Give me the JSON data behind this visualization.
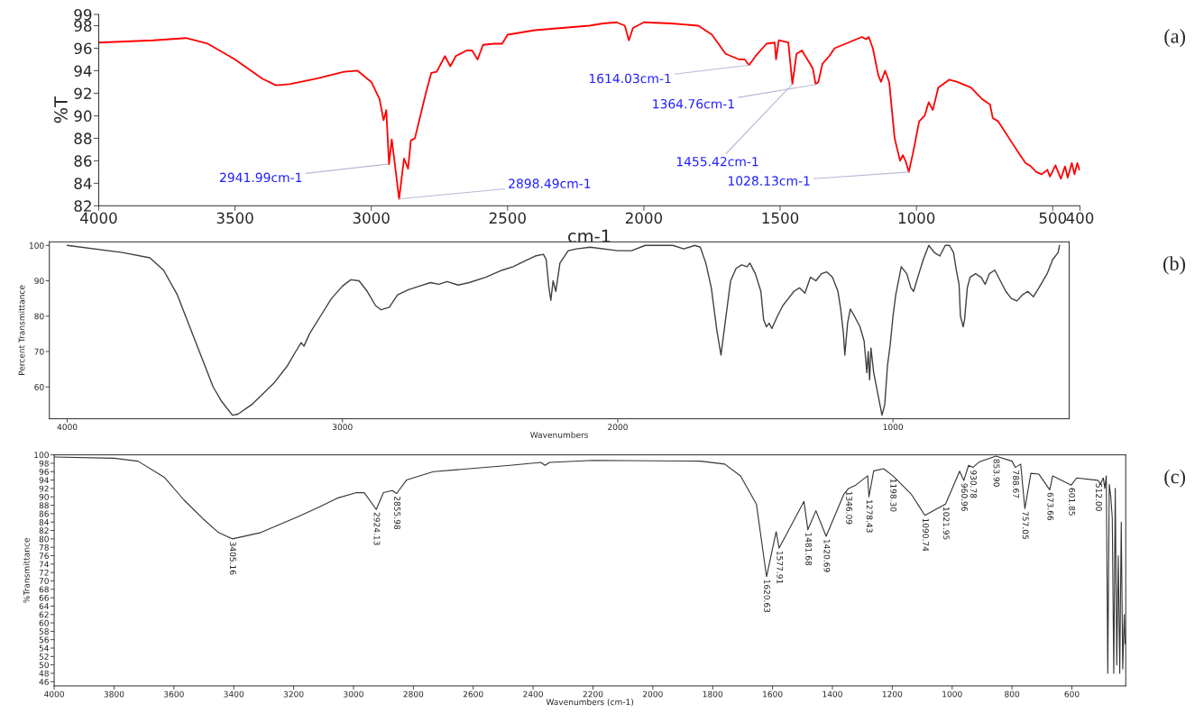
{
  "chart_data": [
    {
      "type": "line",
      "xlabel": "cm-1",
      "ylabel": "%T",
      "xlim": [
        4000,
        400
      ],
      "ylim": [
        82,
        99
      ],
      "xticks": [
        4000,
        3500,
        3000,
        2500,
        2000,
        1500,
        1000,
        500,
        400
      ],
      "yticks": [
        82,
        84,
        86,
        88,
        90,
        92,
        94,
        96,
        98,
        99
      ],
      "x": [
        4000,
        3800,
        3680,
        3600,
        3500,
        3400,
        3350,
        3300,
        3200,
        3100,
        3050,
        3000,
        2970,
        2955,
        2945,
        2935,
        2925,
        2915,
        2898,
        2880,
        2865,
        2855,
        2840,
        2800,
        2780,
        2760,
        2730,
        2710,
        2690,
        2650,
        2630,
        2610,
        2590,
        2550,
        2520,
        2500,
        2400,
        2300,
        2200,
        2150,
        2100,
        2070,
        2055,
        2040,
        2000,
        1900,
        1800,
        1750,
        1700,
        1650,
        1630,
        1614,
        1590,
        1550,
        1520,
        1515,
        1505,
        1470,
        1455,
        1440,
        1420,
        1400,
        1380,
        1370,
        1360,
        1345,
        1320,
        1300,
        1250,
        1200,
        1185,
        1175,
        1160,
        1140,
        1130,
        1115,
        1100,
        1080,
        1060,
        1050,
        1040,
        1028,
        1010,
        990,
        970,
        955,
        940,
        920,
        880,
        850,
        800,
        760,
        730,
        720,
        700,
        660,
        620,
        600,
        580,
        560,
        540,
        520,
        510,
        490,
        470,
        455,
        445,
        430,
        420,
        410,
        402
      ],
      "series": [
        {
          "color": "#ff0000",
          "values": [
            96.5,
            96.7,
            96.9,
            96.4,
            95.0,
            93.3,
            92.7,
            92.8,
            93.3,
            93.9,
            94.0,
            93.0,
            91.5,
            89.6,
            90.5,
            85.7,
            87.9,
            86.0,
            82.6,
            86.2,
            85.3,
            87.8,
            88.0,
            92.0,
            93.8,
            93.9,
            95.3,
            94.4,
            95.3,
            95.8,
            95.8,
            95.0,
            96.3,
            96.4,
            96.4,
            97.2,
            97.6,
            97.8,
            98.0,
            98.2,
            98.3,
            98.0,
            96.7,
            97.8,
            98.3,
            98.2,
            98.0,
            97.2,
            95.5,
            95.0,
            95.0,
            94.5,
            95.3,
            96.4,
            96.5,
            95.0,
            96.7,
            96.5,
            92.8,
            95.5,
            95.8,
            95.0,
            94.2,
            92.8,
            93.0,
            94.6,
            95.3,
            96.0,
            96.5,
            97.0,
            96.8,
            97.0,
            96.0,
            93.6,
            93.0,
            94.0,
            93.0,
            88.0,
            86.0,
            86.5,
            86.0,
            85.0,
            87.0,
            89.5,
            90.0,
            91.2,
            90.5,
            92.5,
            93.2,
            93.0,
            92.5,
            91.5,
            91.0,
            89.8,
            89.5,
            88.0,
            86.5,
            85.8,
            85.5,
            85.0,
            84.8,
            85.2,
            84.6,
            85.6,
            84.4,
            85.5,
            84.5,
            85.8,
            84.8,
            85.8,
            85.2
          ]
        }
      ],
      "annotations": [
        {
          "text": "2941.99cm-1",
          "x": 2941.99,
          "y": 85.7
        },
        {
          "text": "2898.49cm-1",
          "x": 2898.49,
          "y": 82.6
        },
        {
          "text": "1614.03cm-1",
          "x": 1614.03,
          "y": 94.5
        },
        {
          "text": "1455.42cm-1",
          "x": 1455.42,
          "y": 92.8
        },
        {
          "text": "1364.76cm-1",
          "x": 1364.76,
          "y": 92.8
        },
        {
          "text": "1028.13cm-1",
          "x": 1028.13,
          "y": 85.0
        },
        "(a)"
      ]
    },
    {
      "type": "line",
      "xlabel": "Wavenumbers",
      "ylabel": "Percent Transmittance",
      "xlim": [
        4065,
        360
      ],
      "ylim": [
        51,
        101
      ],
      "xticks": [
        4000,
        3000,
        2000,
        1000
      ],
      "yticks": [
        60,
        70,
        80,
        90,
        100
      ],
      "x": [
        4000,
        3800,
        3700,
        3650,
        3600,
        3550,
        3500,
        3470,
        3440,
        3400,
        3380,
        3330,
        3250,
        3200,
        3170,
        3150,
        3140,
        3120,
        3080,
        3040,
        3000,
        2970,
        2940,
        2910,
        2880,
        2860,
        2830,
        2800,
        2760,
        2720,
        2680,
        2650,
        2620,
        2580,
        2540,
        2480,
        2420,
        2380,
        2340,
        2300,
        2270,
        2260,
        2250,
        2243,
        2235,
        2225,
        2210,
        2180,
        2150,
        2100,
        2000,
        1950,
        1900,
        1800,
        1760,
        1720,
        1700,
        1680,
        1660,
        1640,
        1625,
        1610,
        1590,
        1570,
        1550,
        1530,
        1520,
        1500,
        1480,
        1470,
        1460,
        1450,
        1440,
        1420,
        1400,
        1380,
        1360,
        1340,
        1320,
        1300,
        1280,
        1260,
        1240,
        1220,
        1200,
        1190,
        1180,
        1175,
        1165,
        1155,
        1140,
        1120,
        1105,
        1095,
        1090,
        1085,
        1080,
        1070,
        1050,
        1040,
        1030,
        1020,
        1010,
        1000,
        990,
        980,
        970,
        950,
        935,
        925,
        910,
        890,
        870,
        850,
        830,
        810,
        795,
        780,
        770,
        760,
        755,
        745,
        740,
        730,
        720,
        700,
        680,
        665,
        650,
        630,
        610,
        590,
        570,
        550,
        530,
        510,
        490,
        470,
        440,
        420,
        400,
        395
      ],
      "series": [
        {
          "color": "#404040",
          "values": [
            100,
            98,
            96.5,
            93,
            86,
            76,
            66,
            60,
            56,
            52,
            52.3,
            55,
            61,
            66,
            70,
            72.5,
            71.5,
            75,
            80,
            85,
            88.5,
            90.3,
            90,
            87,
            83,
            81.8,
            82.5,
            86,
            87.5,
            88.5,
            89.5,
            89,
            89.8,
            88.8,
            89.5,
            91,
            93,
            94,
            95.5,
            97,
            97.5,
            96,
            88,
            84.5,
            90,
            87,
            95,
            98.5,
            99,
            99.5,
            98.5,
            98.5,
            100,
            100,
            99,
            100,
            99.5,
            95,
            88,
            76,
            69,
            78,
            90,
            93.5,
            94.5,
            94,
            95,
            92,
            87,
            79,
            77,
            78,
            76.5,
            80,
            83,
            85,
            87,
            88,
            86.5,
            91,
            90,
            92,
            92.5,
            91,
            87,
            82,
            75,
            69,
            78,
            82,
            80,
            77,
            73,
            64,
            70,
            62,
            71,
            64,
            56,
            52,
            55,
            66,
            72,
            80,
            86,
            90,
            94,
            92,
            88,
            87,
            91,
            96,
            100,
            98,
            97,
            100,
            100,
            98,
            93,
            89,
            80,
            77,
            79,
            88,
            91,
            92,
            91,
            89,
            92,
            93,
            90,
            87,
            85,
            84.3,
            86,
            87,
            85.5,
            88,
            92,
            96,
            98,
            100
          ]
        }
      ],
      "annotations": [
        "(b)"
      ]
    },
    {
      "type": "line",
      "xlabel": "Wavenumbers (cm-1)",
      "ylabel": "%Transmittance",
      "xlim": [
        4000,
        420
      ],
      "ylim": [
        45,
        100
      ],
      "xticks": [
        4000,
        3800,
        3600,
        3400,
        3200,
        3000,
        2800,
        2600,
        2400,
        2200,
        2000,
        1800,
        1600,
        1400,
        1200,
        1000,
        800,
        600
      ],
      "yticks": [
        46,
        48,
        50,
        52,
        54,
        56,
        58,
        60,
        62,
        64,
        66,
        68,
        70,
        72,
        74,
        76,
        78,
        80,
        82,
        84,
        86,
        88,
        90,
        92,
        94,
        96,
        98,
        100
      ],
      "x": [
        4000,
        3800,
        3720,
        3631,
        3567,
        3503,
        3451,
        3405,
        3310,
        3182,
        3118,
        3054,
        2990,
        2964,
        2924,
        2900,
        2870,
        2856,
        2823,
        2733,
        2477,
        2374,
        2360,
        2345,
        2200,
        1840,
        1760,
        1707,
        1654,
        1620,
        1588,
        1578,
        1495,
        1482,
        1455,
        1421,
        1362,
        1346,
        1322,
        1282,
        1278,
        1262,
        1229,
        1198,
        1136,
        1091,
        1022,
        975,
        961,
        945,
        931,
        910,
        854,
        800,
        789,
        771,
        757,
        737,
        710,
        674,
        664,
        602,
        584,
        520,
        512,
        505,
        495,
        490,
        485,
        480,
        475,
        470,
        465,
        460,
        455,
        450,
        445,
        440,
        435,
        430,
        425,
        422
      ],
      "series": [
        {
          "color": "#333333",
          "values": [
            99.5,
            99.2,
            98.5,
            94.6,
            89.3,
            84.8,
            81.5,
            80.0,
            81.5,
            85.4,
            87.5,
            89.7,
            91,
            91,
            87.0,
            91,
            91.5,
            90.8,
            94,
            96,
            97.5,
            98.2,
            97.5,
            98.2,
            98.7,
            98.5,
            97.8,
            95,
            88.3,
            71,
            81.7,
            77.8,
            88.9,
            82.2,
            86.7,
            80.6,
            90.6,
            92,
            92.8,
            95,
            90,
            96.2,
            96.7,
            95,
            90.6,
            85.6,
            88.3,
            96.1,
            93.9,
            97.5,
            97,
            98.3,
            99.7,
            98.5,
            97,
            97.8,
            87.2,
            95.6,
            95.4,
            91.7,
            95,
            92.8,
            94.5,
            94,
            93.9,
            93,
            94.5,
            92,
            95,
            48,
            93,
            90,
            85,
            48,
            92,
            50,
            76,
            48,
            84,
            49,
            62,
            55
          ]
        }
      ],
      "annotations": [
        {
          "text": "3405.16",
          "x": 3405.16,
          "y": 80.0
        },
        {
          "text": "2924.13",
          "x": 2924.13,
          "y": 87.0
        },
        {
          "text": "2855.98",
          "x": 2855.98,
          "y": 90.8
        },
        {
          "text": "1620.63",
          "x": 1620.63,
          "y": 71
        },
        {
          "text": "1577.91",
          "x": 1577.91,
          "y": 77.8
        },
        {
          "text": "1481.68",
          "x": 1481.68,
          "y": 82.2
        },
        {
          "text": "1420.69",
          "x": 1420.69,
          "y": 80.6
        },
        {
          "text": "1346.09",
          "x": 1346.09,
          "y": 92
        },
        {
          "text": "1278.43",
          "x": 1278.43,
          "y": 90
        },
        {
          "text": "1198.30",
          "x": 1198.3,
          "y": 95
        },
        {
          "text": "1090.74",
          "x": 1090.74,
          "y": 85.6
        },
        {
          "text": "1021.95",
          "x": 1021.95,
          "y": 88.3
        },
        {
          "text": "960.96",
          "x": 960.96,
          "y": 93.9
        },
        {
          "text": "930.78",
          "x": 930.78,
          "y": 97
        },
        {
          "text": "853.90",
          "x": 853.9,
          "y": 99.7
        },
        {
          "text": "788.67",
          "x": 788.67,
          "y": 97
        },
        {
          "text": "757.05",
          "x": 757.05,
          "y": 87.2
        },
        {
          "text": "673.66",
          "x": 673.66,
          "y": 91.7
        },
        {
          "text": "601.85",
          "x": 601.85,
          "y": 92.8
        },
        {
          "text": "512.00",
          "x": 512.0,
          "y": 93.9
        },
        "(c)"
      ]
    }
  ]
}
